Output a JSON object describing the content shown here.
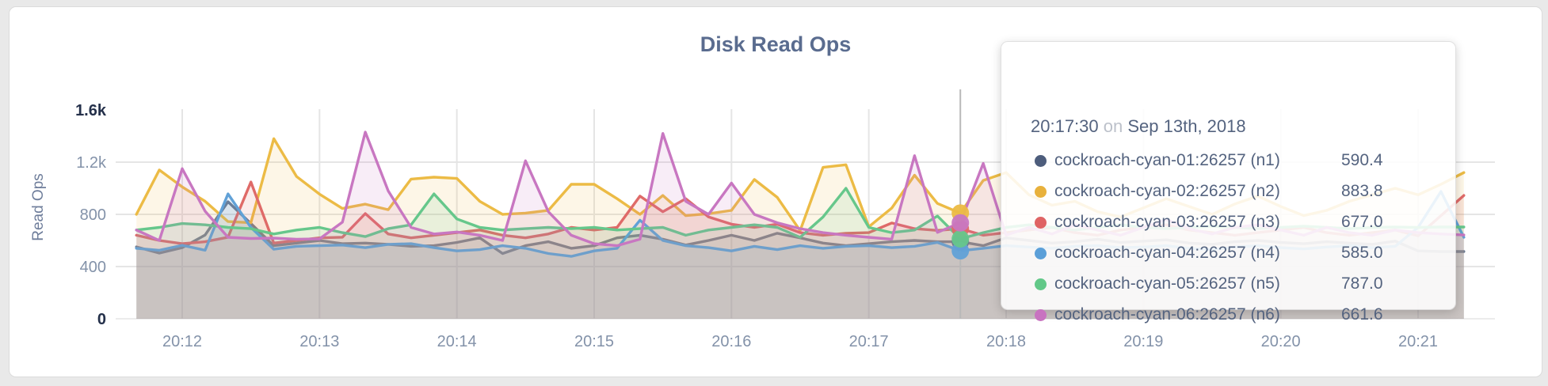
{
  "page": {
    "background": "#e9e9e9",
    "card_background": "#ffffff"
  },
  "chart_data": {
    "type": "line",
    "title": "Disk Read Ops",
    "xlabel": "",
    "ylabel": "Read Ops",
    "ylim": [
      0,
      1600
    ],
    "ytick_values": [
      0,
      400,
      800,
      1200,
      1600
    ],
    "ytick_labels": [
      "0",
      "400",
      "800",
      "1.2k",
      "1.6k"
    ],
    "xtick_labels": [
      "20:12",
      "20:13",
      "20:14",
      "20:15",
      "20:16",
      "20:17",
      "20:18",
      "20:19",
      "20:20",
      "20:21"
    ],
    "x_start_time": "20:11:40",
    "x_interval_seconds": 10,
    "grid": true,
    "legend_position": "none",
    "series": [
      {
        "name": "cockroach-cyan-01:26257 (n1)",
        "short": "n1",
        "color": "#6b7990",
        "values": [
          551,
          503,
          545,
          642,
          897,
          730,
          560,
          580,
          600,
          575,
          580,
          570,
          555,
          560,
          585,
          620,
          500,
          560,
          590,
          540,
          560,
          620,
          640,
          610,
          565,
          600,
          640,
          600,
          655,
          620,
          580,
          560,
          575,
          590,
          600,
          590.4,
          590,
          560,
          620,
          600,
          580,
          590,
          610,
          585,
          595,
          605,
          580,
          570,
          590,
          600,
          585,
          575,
          590,
          580,
          570,
          595,
          520,
          515,
          515
        ]
      },
      {
        "name": "cockroach-cyan-02:26257 (n2)",
        "short": "n2",
        "color": "#ecbb45",
        "values": [
          800,
          1140,
          1010,
          900,
          745,
          736,
          1380,
          1090,
          955,
          845,
          878,
          836,
          1070,
          1085,
          1075,
          900,
          800,
          810,
          830,
          1030,
          1030,
          920,
          800,
          945,
          790,
          805,
          830,
          1067,
          930,
          675,
          1160,
          1180,
          705,
          848,
          1100,
          883.8,
          810,
          1060,
          1120,
          950,
          870,
          900,
          820,
          780,
          850,
          920,
          860,
          800,
          880,
          940,
          860,
          790,
          830,
          900,
          950,
          1000,
          950,
          1030,
          1120
        ]
      },
      {
        "name": "cockroach-cyan-03:26257 (n3)",
        "short": "n3",
        "color": "#df6a68",
        "values": [
          640,
          600,
          575,
          590,
          625,
          1048,
          580,
          600,
          620,
          625,
          806,
          650,
          620,
          640,
          660,
          680,
          640,
          620,
          650,
          700,
          680,
          700,
          940,
          820,
          920,
          780,
          725,
          700,
          725,
          660,
          640,
          655,
          660,
          734,
          690,
          677,
          690,
          640,
          660,
          680,
          700,
          660,
          640,
          680,
          700,
          720,
          680,
          660,
          640,
          660,
          680,
          700,
          660,
          640,
          660,
          680,
          636,
          790,
          945
        ]
      },
      {
        "name": "cockroach-cyan-04:26257 (n4)",
        "short": "n4",
        "color": "#61a1d7",
        "values": [
          540,
          525,
          563,
          525,
          957,
          700,
          533,
          555,
          560,
          565,
          545,
          570,
          575,
          545,
          520,
          530,
          560,
          540,
          500,
          478,
          520,
          540,
          755,
          600,
          560,
          545,
          520,
          555,
          530,
          560,
          540,
          555,
          560,
          545,
          555,
          585,
          521,
          540,
          560,
          550,
          540,
          555,
          560,
          545,
          550,
          560,
          540,
          530,
          550,
          560,
          545,
          535,
          550,
          560,
          545,
          555,
          700,
          975,
          624
        ]
      },
      {
        "name": "cockroach-cyan-05:26257 (n5)",
        "short": "n5",
        "color": "#66c78b",
        "values": [
          680,
          700,
          730,
          720,
          700,
          690,
          650,
          680,
          700,
          660,
          630,
          690,
          720,
          957,
          765,
          700,
          680,
          690,
          700,
          690,
          700,
          680,
          690,
          700,
          640,
          680,
          700,
          720,
          700,
          624,
          780,
          1000,
          700,
          660,
          680,
          787,
          612,
          660,
          700,
          720,
          700,
          680,
          700,
          720,
          700,
          690,
          700,
          710,
          700,
          690,
          700,
          710,
          700,
          690,
          700,
          703,
          700,
          703,
          703
        ]
      },
      {
        "name": "cockroach-cyan-06:26257 (n6)",
        "short": "n6",
        "color": "#c877c1",
        "values": [
          680,
          600,
          1150,
          824,
          624,
          615,
          618,
          610,
          612,
          740,
          1430,
          980,
          700,
          650,
          665,
          640,
          600,
          1210,
          820,
          640,
          575,
          560,
          610,
          1420,
          900,
          800,
          1040,
          800,
          736,
          690,
          660,
          640,
          624,
          610,
          1250,
          661.6,
          735,
          1190,
          640,
          700,
          650,
          720,
          680,
          640,
          700,
          760,
          690,
          650,
          700,
          720,
          680,
          640,
          700,
          660,
          640,
          680,
          660,
          650,
          642
        ]
      }
    ]
  },
  "hover": {
    "guideline_color": "#b9b9b9",
    "dot_index": 36,
    "dot_draw_order": [
      0,
      2,
      1,
      3,
      4,
      5
    ]
  },
  "tooltip": {
    "time": "20:17:30",
    "conjunction": "on",
    "date": "Sep 13th, 2018",
    "rows": [
      {
        "label": "cockroach-cyan-01:26257 (n1)",
        "value": "590.4",
        "color": "#4d5d7c"
      },
      {
        "label": "cockroach-cyan-02:26257 (n2)",
        "value": "883.8",
        "color": "#e8b13c"
      },
      {
        "label": "cockroach-cyan-03:26257 (n3)",
        "value": "677.0",
        "color": "#df6464"
      },
      {
        "label": "cockroach-cyan-04:26257 (n4)",
        "value": "585.0",
        "color": "#5b9fd8"
      },
      {
        "label": "cockroach-cyan-05:26257 (n5)",
        "value": "787.0",
        "color": "#62c888"
      },
      {
        "label": "cockroach-cyan-06:26257 (n6)",
        "value": "661.6",
        "color": "#c873c0"
      }
    ]
  },
  "axis_colors": {
    "tick_minmax": "#24304a",
    "tick_mid": "#8392a9",
    "x_tick": "#8392a9",
    "axis_title": "#6f7e9b",
    "grid": "#e5e5e5",
    "title": "#5a6c8f"
  }
}
